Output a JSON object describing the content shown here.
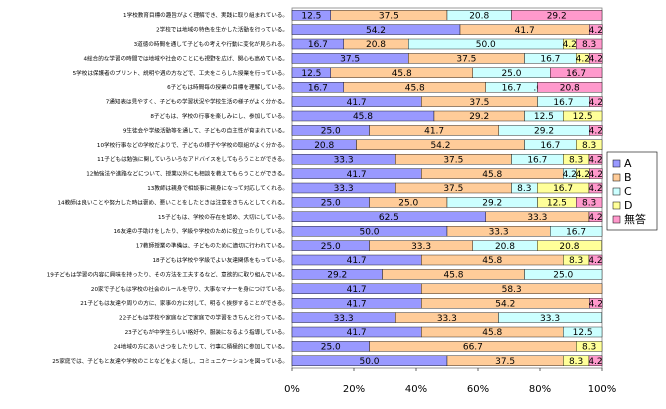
{
  "chart_data": {
    "type": "bar",
    "orientation": "horizontal",
    "stacked": true,
    "percent": true,
    "xlim": [
      0,
      100
    ],
    "x_ticks": [
      "0%",
      "20%",
      "40%",
      "60%",
      "80%",
      "100%"
    ],
    "legend_position": "right",
    "series": [
      {
        "name": "A",
        "color": "#9999ff"
      },
      {
        "name": "B",
        "color": "#ffcc99"
      },
      {
        "name": "C",
        "color": "#ccffff"
      },
      {
        "name": "D",
        "color": "#ffff99"
      },
      {
        "name": "無答",
        "color": "#ff99cc"
      }
    ],
    "categories": [
      "1学校教育目標の趣旨がよく理解でき、実践に取り組まれている。",
      "2学校では地域の特色を生かした活動を行っている。",
      "3道徳の時間を通して子どもの考えや行動に変化が見られる。",
      "4総合的な学習の時間では地域や社会のことにも視野を広げ、関心も高めている。",
      "5学校は保護者のプリント、説明や週の方などで、工夫をこらした授業を行っている。",
      "6子どもは時間毎の授業の目標を理解している。",
      "7通知表は見やすく、子どもの学習状況や学校生活の様子がよく分かる。",
      "8子どもは、学校の行事を楽しみにし、参加している。",
      "9生徒会や学級活動等を通して、子どもの自主性が育まれている。",
      "10学校行事などの学校だよりで、子どもの様子や学校の取組がよく分かる。",
      "11子どもは勉強に関していろいろなアドバイスをしてもらうことができる。",
      "12勉強法や進路などについて、授業以外にも相談を教えてもらうことができる。",
      "13教師は親身で相談事に親身になって対応してくれる。",
      "14教師は良いことや努力した時は褒め、悪いことをしたときは注意をきちんとしてくれる。",
      "15子どもは、学校の存在を認め、大切にしている。",
      "16友達の手助けをしたり、学級や学校のために役立ったりしている。",
      "17教師授業の準備は、子どものために適切に行われている。",
      "18子どもは学校や学級でよい友達関係をもっている。",
      "19子どもは学習の内容に興味を持ったり、その方法を工夫するなど、意欲的に取り組んでいる。",
      "20家で子どもは学校の社会のルールを守り、大事なマナーを身につけている。",
      "21子どもは友達や周りの方に、家事の方に対して、明るく挨拶することができる。",
      "22子どもは学校や家庭などで家庭での学習をきちんと行っている。",
      "23子どもが中学生らしい格好や、服装になるよう指導している。",
      "24地域の方にあいさつをしたりして、行事に積極的に参加している。",
      "25家庭では、子どもと友達や学校のことなどをよく話し、コミュニケーションを図っている。"
    ],
    "values": [
      [
        12.5,
        37.5,
        20.8,
        0,
        29.2
      ],
      [
        54.2,
        41.7,
        0,
        0,
        4.2
      ],
      [
        16.7,
        20.8,
        50.0,
        4.2,
        8.3
      ],
      [
        37.5,
        37.5,
        16.7,
        4.2,
        4.2
      ],
      [
        12.5,
        45.8,
        25.0,
        0,
        16.7
      ],
      [
        16.7,
        45.8,
        16.7,
        0,
        20.8
      ],
      [
        41.7,
        37.5,
        16.7,
        0,
        4.2
      ],
      [
        45.8,
        29.2,
        12.5,
        12.5,
        0
      ],
      [
        25.0,
        41.7,
        29.2,
        0,
        4.2
      ],
      [
        20.8,
        54.2,
        16.7,
        8.3,
        0
      ],
      [
        33.3,
        37.5,
        16.7,
        8.3,
        4.2
      ],
      [
        41.7,
        45.8,
        4.2,
        4.2,
        4.2
      ],
      [
        33.3,
        37.5,
        8.3,
        16.7,
        4.2
      ],
      [
        25.0,
        25.0,
        29.2,
        12.5,
        8.3
      ],
      [
        62.5,
        33.3,
        0,
        0,
        4.2
      ],
      [
        50.0,
        33.3,
        16.7,
        0,
        0
      ],
      [
        25.0,
        33.3,
        20.8,
        20.8,
        0
      ],
      [
        41.7,
        45.8,
        0,
        8.3,
        4.2
      ],
      [
        29.2,
        45.8,
        25.0,
        0,
        0
      ],
      [
        41.7,
        58.3,
        0,
        0,
        0
      ],
      [
        41.7,
        54.2,
        0,
        0,
        4.2
      ],
      [
        33.3,
        33.3,
        33.3,
        0,
        0
      ],
      [
        41.7,
        45.8,
        12.5,
        0,
        0
      ],
      [
        25.0,
        66.7,
        0,
        8.3,
        0
      ],
      [
        50.0,
        37.5,
        0,
        8.3,
        4.2
      ]
    ],
    "labels": [
      [
        "12.5",
        "37.5",
        "20.8",
        "",
        "29.2"
      ],
      [
        "54.2",
        "41.7",
        "",
        "",
        "4.2"
      ],
      [
        "16.7",
        "20.8",
        "50.0",
        "4.2",
        "8.3"
      ],
      [
        "37.5",
        "37.5",
        "16.7",
        "4.2",
        "4.2"
      ],
      [
        "12.5",
        "45.8",
        "25.0",
        "",
        "16.7"
      ],
      [
        "16.7",
        "45.8",
        "16.7",
        ".00",
        "20.8"
      ],
      [
        "41.7",
        "37.5",
        "16.7",
        "",
        "4.2"
      ],
      [
        "45.8",
        "29.2",
        "12.5",
        "12.5",
        ""
      ],
      [
        "25.0",
        "41.7",
        "29.2",
        "",
        "4.2"
      ],
      [
        "20.8",
        "54.2",
        "16.7",
        "8.3",
        ""
      ],
      [
        "33.3",
        "37.5",
        "16.7",
        "8.3",
        "4.2"
      ],
      [
        "41.7",
        "45.8",
        "4.2",
        "4.2",
        "4.2"
      ],
      [
        "33.3",
        "37.5",
        "8.3",
        "16.7",
        "4.2"
      ],
      [
        "25.0",
        "25.0",
        "29.2",
        "12.5",
        "8.3"
      ],
      [
        "62.5",
        "33.3",
        "",
        "",
        "4.2"
      ],
      [
        "50.0",
        "33.3",
        "16.7",
        "",
        ""
      ],
      [
        "25.0",
        "33.3",
        "20.8",
        "20.8",
        ""
      ],
      [
        "41.7",
        "45.8",
        "",
        "8.3",
        "4.2"
      ],
      [
        "29.2",
        "45.8",
        "25.0",
        "",
        ""
      ],
      [
        "41.7",
        "58.3",
        "",
        "",
        ""
      ],
      [
        "41.7",
        "54.2",
        "",
        "",
        "4.2"
      ],
      [
        "33.3",
        "33.3",
        "33.3",
        "",
        ""
      ],
      [
        "41.7",
        "45.8",
        "12.5",
        "",
        ""
      ],
      [
        "25.0",
        "66.7",
        "",
        "8.3",
        ""
      ],
      [
        "50.0",
        "37.5",
        "",
        "8.3",
        "4.2"
      ]
    ]
  }
}
